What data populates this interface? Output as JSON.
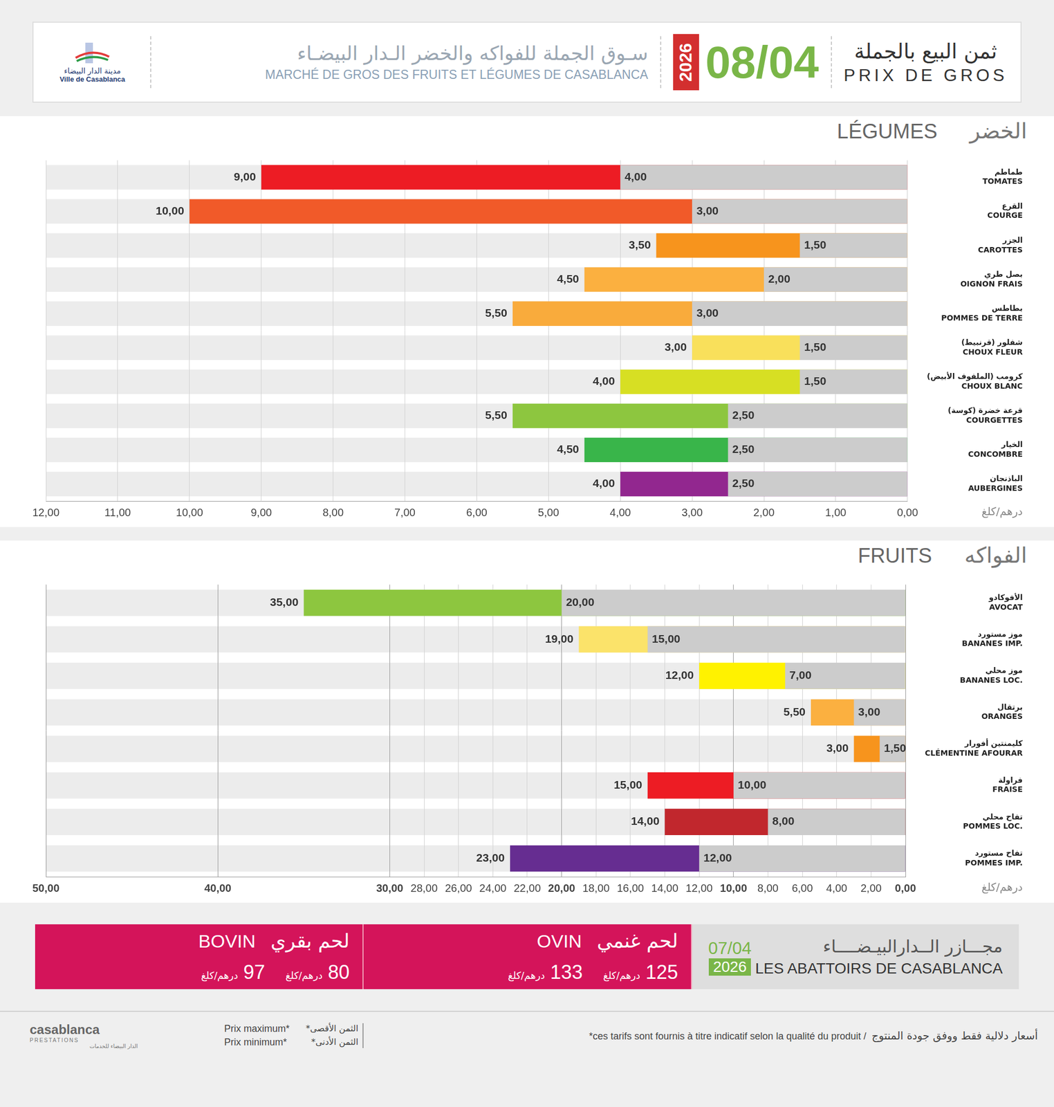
{
  "header": {
    "logo_ar": "مدينة الدار البيضاء",
    "logo_fr": "Ville de Casablanca",
    "market_ar": "سـوق الجملة للفواكه والخضر الـدار البيضـاء",
    "market_fr": "MARCHÉ DE GROS DES FRUITS ET LÉGUMES DE CASABLANCA",
    "year": "2026",
    "date": "08/04",
    "title_ar": "ثمن البيع بالجملة",
    "title_fr": "PRIX DE GROS"
  },
  "chart_data": [
    {
      "type": "bar",
      "orientation": "horizontal",
      "title": "LÉGUMES",
      "title_ar": "الخضر",
      "xlabel": "درهم/كلغ",
      "categories": [
        [
          "طماطم",
          "TOMATES"
        ],
        [
          "القرع",
          "COURGE"
        ],
        [
          "الجزر",
          "CAROTTES"
        ],
        [
          "بصل طري",
          "OIGNON FRAIS"
        ],
        [
          "بطاطس",
          "POMMES DE TERRE"
        ],
        [
          "شفلور (قرنبيط)",
          "CHOUX FLEUR"
        ],
        [
          "كرومب (الملفوف الأبيض)",
          "CHOUX BLANC"
        ],
        [
          "قرعة خضرة (كوسة)",
          "COURGETTES"
        ],
        [
          "الخيار",
          "CONCOMBRE"
        ],
        [
          "الباذنجان",
          "AUBERGINES"
        ]
      ],
      "series": [
        {
          "name": "Prix minimum*",
          "color": "#cccccc",
          "values": [
            4,
            3,
            1.5,
            2,
            3,
            1.5,
            1.5,
            2.5,
            2.5,
            2.5
          ],
          "value_labels": [
            "4,00",
            "3,00",
            "1,50",
            "2,00",
            "3,00",
            "1,50",
            "1,50",
            "2,50",
            "2,50",
            "2,50"
          ]
        },
        {
          "name": "Prix maximum*",
          "colors": [
            "#ed1c24",
            "#f15a29",
            "#f7941d",
            "#fbb040",
            "#f9ab3c",
            "#f9e05b",
            "#d7df23",
            "#8dc63f",
            "#39b54a",
            "#92278f"
          ],
          "values": [
            9,
            10,
            3.5,
            4.5,
            5.5,
            3,
            4,
            5.5,
            4.5,
            4
          ],
          "value_labels": [
            "9,00",
            "10,00",
            "3,50",
            "4,50",
            "5,50",
            "3,00",
            "4,00",
            "5,50",
            "4,50",
            "4,00"
          ]
        }
      ],
      "xlim": [
        0,
        12
      ],
      "xticks": [
        {
          "value": 0,
          "label": "0,00"
        },
        {
          "value": 1,
          "label": "1,00"
        },
        {
          "value": 2,
          "label": "2,00"
        },
        {
          "value": 3,
          "label": "3,00"
        },
        {
          "value": 4,
          "label": "4,00"
        },
        {
          "value": 5,
          "label": "5,00"
        },
        {
          "value": 6,
          "label": "6,00"
        },
        {
          "value": 7,
          "label": "7,00"
        },
        {
          "value": 8,
          "label": "8,00"
        },
        {
          "value": 9,
          "label": "9,00"
        },
        {
          "value": 10,
          "label": "10,00"
        },
        {
          "value": 11,
          "label": "11,00"
        },
        {
          "value": 12,
          "label": "12,00"
        }
      ],
      "grid": true,
      "data_labels": true
    },
    {
      "type": "bar",
      "orientation": "horizontal",
      "title": "FRUITS",
      "title_ar": "الفواكه",
      "xlabel": "درهم/كلغ",
      "categories": [
        [
          "الأفوكادو",
          "AVOCAT"
        ],
        [
          "موز مستورد",
          "BANANES IMP."
        ],
        [
          "موز محلي",
          "BANANES LOC."
        ],
        [
          "برتقال",
          "ORANGES"
        ],
        [
          "كليمنتين أفورار",
          "CLÉMENTINE AFOURAR"
        ],
        [
          "فراولة",
          "FRAISE"
        ],
        [
          "تفاح محلي",
          "POMMES LOC."
        ],
        [
          "تفاح مستورد",
          "POMMES IMP."
        ]
      ],
      "series": [
        {
          "name": "Prix minimum*",
          "color": "#cccccc",
          "values": [
            20,
            15,
            7,
            3,
            1.5,
            10,
            8,
            12
          ],
          "value_labels": [
            "20,00",
            "15,00",
            "7,00",
            "3,00",
            "1,50",
            "10,00",
            "8,00",
            "12,00"
          ]
        },
        {
          "name": "Prix maximum*",
          "colors": [
            "#8dc63f",
            "#fbe36a",
            "#fff200",
            "#fbb040",
            "#f7941d",
            "#ed1c24",
            "#c1272d",
            "#662d91"
          ],
          "values": [
            35,
            19,
            12,
            5.5,
            3,
            15,
            14,
            23
          ],
          "value_labels": [
            "35,00",
            "19,00",
            "12,00",
            "5,50",
            "3,00",
            "15,00",
            "14,00",
            "23,00"
          ]
        }
      ],
      "xlim": [
        0,
        50
      ],
      "xticks": [
        {
          "value": 0,
          "label": "0,00"
        },
        {
          "value": 2,
          "label": "2,00"
        },
        {
          "value": 4,
          "label": "4,00"
        },
        {
          "value": 6,
          "label": "6,00"
        },
        {
          "value": 8,
          "label": "8,00"
        },
        {
          "value": 10,
          "label": "10,00"
        },
        {
          "value": 12,
          "label": "12,00"
        },
        {
          "value": 14,
          "label": "14,00"
        },
        {
          "value": 16,
          "label": "16,00"
        },
        {
          "value": 18,
          "label": "18,00"
        },
        {
          "value": 20,
          "label": "20,00"
        },
        {
          "value": 22,
          "label": "22,00"
        },
        {
          "value": 24,
          "label": "24,00"
        },
        {
          "value": 26,
          "label": "26,00"
        },
        {
          "value": 28,
          "label": "28,00"
        },
        {
          "value": 30,
          "label": "30,00"
        },
        {
          "value": 40,
          "label": "40,00"
        },
        {
          "value": 50,
          "label": "50,00"
        }
      ],
      "grid": true,
      "data_labels": true
    }
  ],
  "abattoirs": {
    "title_ar": "مجـــازر الــدارالبيـضــــاء",
    "title_fr": "LES ABATTOIRS DE CASABLANCA",
    "date": "07/04",
    "year": "2026",
    "items": [
      {
        "title_fr": "BOVIN",
        "title_ar": "لحم بقري",
        "prices": [
          {
            "value": "97",
            "unit": "درهم/كلغ"
          },
          {
            "value": "80",
            "unit": "درهم/كلغ"
          }
        ]
      },
      {
        "title_fr": "OVIN",
        "title_ar": "لحم غنمي",
        "prices": [
          {
            "value": "133",
            "unit": "درهم/كلغ"
          },
          {
            "value": "125",
            "unit": "درهم/كلغ"
          }
        ]
      }
    ]
  },
  "footer": {
    "logo_name": "casablanca",
    "logo_sub": "PRESTATIONS",
    "logo_ar": "الدار البيضاء للخدمات",
    "legend_ar": [
      "الثمن الأقصى*",
      "الثمن الأدنى*"
    ],
    "note_fr": "*ces tarifs sont fournis à titre indicatif selon la qualité du produit /",
    "note_ar": "أسعار دلالية فقط ووفق جودة المنتوج"
  }
}
